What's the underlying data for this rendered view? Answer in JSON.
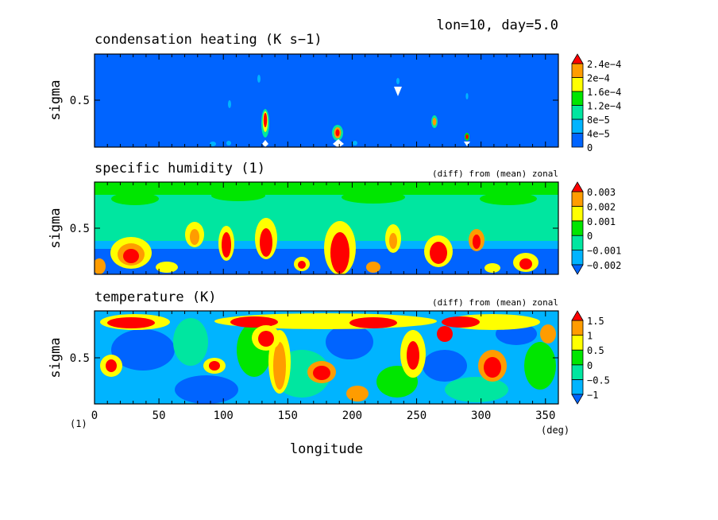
{
  "header": {
    "info": "lon=10, day=5.0"
  },
  "colors": {
    "red": "#ff0000",
    "orange": "#ff9c00",
    "yellow": "#ffff00",
    "green": "#00e600",
    "teal": "#00e6a0",
    "blue": "#0064ff",
    "background": "#ffffff"
  },
  "chart_data": [
    {
      "type": "heatmap",
      "title": "condensation heating (K s−1)",
      "subtitle": "",
      "xlabel": "",
      "ylabel": "sigma",
      "ytick_labels": [
        "0.5"
      ],
      "xlim": [
        0,
        360
      ],
      "ylim": [
        0,
        1
      ],
      "colorbar": {
        "labels": [
          "0",
          "4e−5",
          "8e−5",
          "1.2e−4",
          "1.6e−4",
          "2e−4",
          "2.4e−4"
        ],
        "colors": [
          "#0064ff",
          "#00b4ff",
          "#00e6a0",
          "#00e600",
          "#ffff00",
          "#ff9c00",
          "#ff0000"
        ]
      }
    },
    {
      "type": "heatmap",
      "title": "specific humidity (1)",
      "subtitle": "(diff) from (mean) zonal",
      "xlabel": "",
      "ylabel": "sigma",
      "ytick_labels": [
        "0.5"
      ],
      "xlim": [
        0,
        360
      ],
      "ylim": [
        0,
        1
      ],
      "colorbar": {
        "labels": [
          "−0.002",
          "−0.001",
          "0",
          "0.001",
          "0.002",
          "0.003"
        ],
        "colors": [
          "#0064ff",
          "#00b4ff",
          "#00e6a0",
          "#00e600",
          "#ffff00",
          "#ff9c00",
          "#ff0000"
        ]
      }
    },
    {
      "type": "heatmap",
      "title": "temperature (K)",
      "subtitle": "(diff) from (mean) zonal",
      "xlabel": "longitude",
      "ylabel": "sigma",
      "ytick_labels": [
        "0.5"
      ],
      "xtick_labels": [
        "0",
        "50",
        "100",
        "150",
        "200",
        "250",
        "300",
        "350"
      ],
      "xticks": [
        0,
        50,
        100,
        150,
        200,
        250,
        300,
        350
      ],
      "xlim": [
        0,
        360
      ],
      "ylim": [
        0,
        1
      ],
      "x_unit": "(deg)",
      "y_unit": "(1)",
      "colorbar": {
        "labels": [
          "−1",
          "−0.5",
          "0",
          "0.5",
          "1",
          "1.5"
        ],
        "colors": [
          "#0064ff",
          "#00b4ff",
          "#00e6a0",
          "#00e600",
          "#ffff00",
          "#ff9c00",
          "#ff0000"
        ]
      }
    }
  ]
}
